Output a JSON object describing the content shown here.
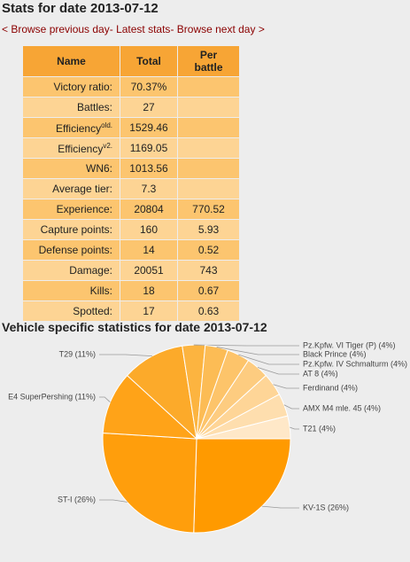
{
  "header": {
    "title": "Stats for date 2013-07-12"
  },
  "nav": [
    "< Browse previous day",
    "- Latest stats",
    "- Browse next day >"
  ],
  "table": {
    "columns": [
      "Name",
      "Total",
      "Per battle"
    ],
    "rows": [
      {
        "name": "Victory ratio:",
        "total": "70.37%"
      },
      {
        "name": "Battles:",
        "total": "27"
      },
      {
        "name": "Efficiency",
        "sup": "old.",
        "total": "1529.46"
      },
      {
        "name": "Efficiency",
        "sup": "v2.",
        "total": "1169.05"
      },
      {
        "name": "WN6:",
        "total": "1013.56"
      },
      {
        "name": "Average tier:",
        "total": "7.3"
      },
      {
        "name": "Experience:",
        "total": "20804",
        "per_battle": "770.52"
      },
      {
        "name": "Capture points:",
        "total": "160",
        "per_battle": "5.93"
      },
      {
        "name": "Defense points:",
        "total": "14",
        "per_battle": "0.52"
      },
      {
        "name": "Damage:",
        "total": "20051",
        "per_battle": "743"
      },
      {
        "name": "Kills:",
        "total": "18",
        "per_battle": "0.67"
      },
      {
        "name": "Spotted:",
        "total": "17",
        "per_battle": "0.63"
      }
    ]
  },
  "chart_data": {
    "type": "pie",
    "title": "Vehicle specific statistics for date 2013-07-12",
    "slices": [
      {
        "label": "KV-1S (26%)",
        "value": 26,
        "color": "#ff9a00"
      },
      {
        "label": "ST-I (26%)",
        "value": 26,
        "color": "#ff9e0c"
      },
      {
        "label": "E4 SuperPershing (11%)",
        "value": 11,
        "color": "#ffa318"
      },
      {
        "label": "T29 (11%)",
        "value": 11,
        "color": "#fcaa2a"
      },
      {
        "label": "Pz.Kpfw. VI Tiger (P) (4%)",
        "value": 4,
        "color": "#fcb440"
      },
      {
        "label": "Black Prince (4%)",
        "value": 4,
        "color": "#fcbc55"
      },
      {
        "label": "Pz.Kpfw. IV Schmalturm (4%)",
        "value": 4,
        "color": "#fdc46a"
      },
      {
        "label": "AT 8 (4%)",
        "value": 4,
        "color": "#fdcc80"
      },
      {
        "label": "Ferdinand (4%)",
        "value": 4,
        "color": "#fed597"
      },
      {
        "label": "AMX M4 mle. 45 (4%)",
        "value": 4,
        "color": "#fedeae"
      },
      {
        "label": "T21 (4%)",
        "value": 4,
        "color": "#ffe8c8"
      }
    ]
  }
}
